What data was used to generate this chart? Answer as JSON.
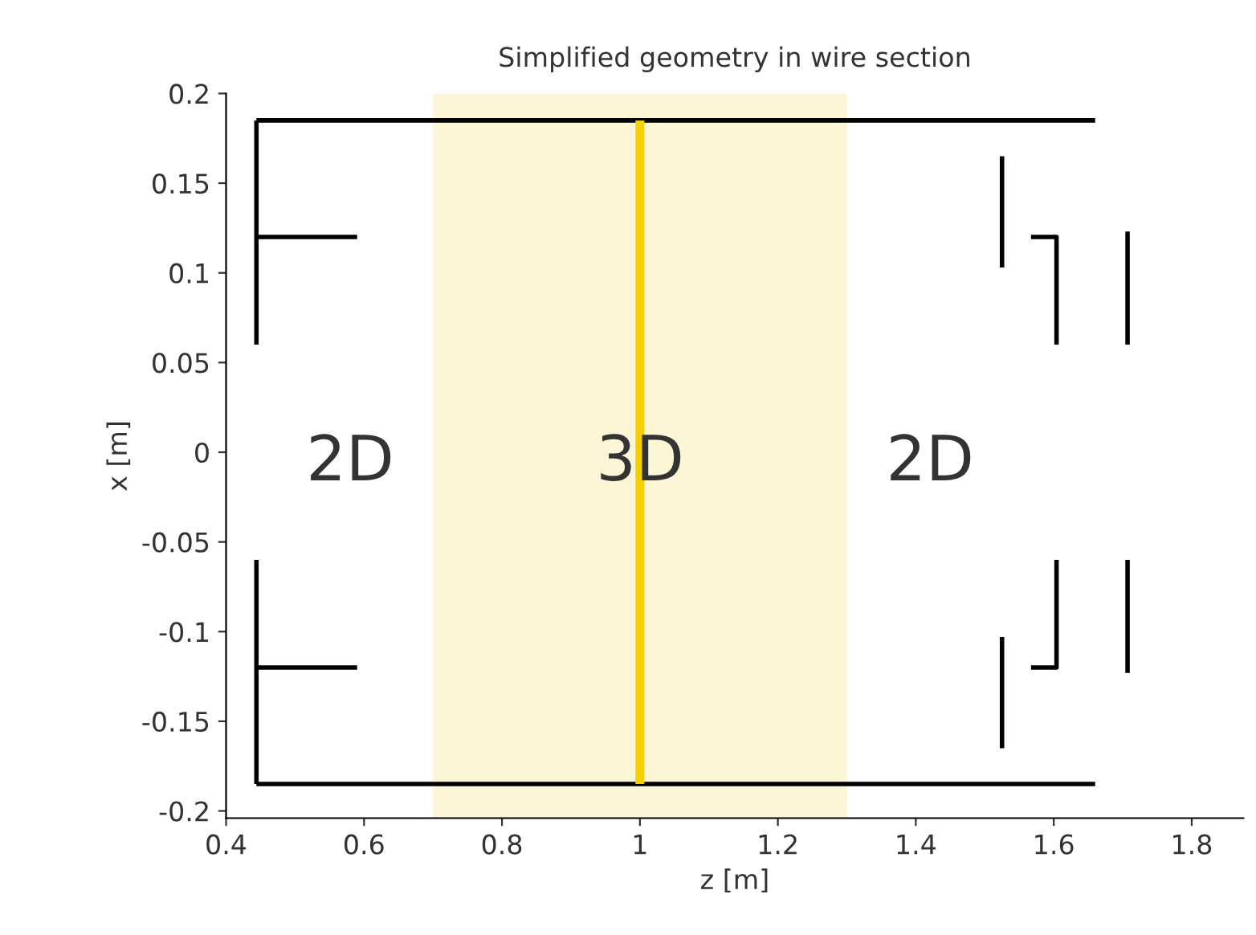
{
  "chart_data": {
    "type": "line",
    "title": "Simplified geometry in wire section",
    "xlabel": "z [m]",
    "ylabel": "x [m]",
    "xlim": [
      0.4,
      1.875
    ],
    "ylim": [
      -0.204,
      0.2
    ],
    "xticks": [
      0.4,
      0.6,
      0.8,
      1,
      1.2,
      1.4,
      1.6,
      1.8
    ],
    "yticks": [
      -0.2,
      -0.15,
      -0.1,
      -0.05,
      0,
      0.05,
      0.1,
      0.15,
      0.2
    ],
    "grid": false,
    "marker": "none",
    "line_style": "solid",
    "bands": [
      {
        "axis": "x",
        "from": 0.7,
        "to": 1.3,
        "color": "#fdf6d6"
      }
    ],
    "annotations": [
      "2D",
      "3D",
      "2D"
    ],
    "series": [
      {
        "color": "#000000",
        "x": [
          0.444,
          1.66
        ],
        "values": [
          0.185,
          0.185
        ]
      },
      {
        "color": "#000000",
        "x": [
          0.444,
          1.66
        ],
        "values": [
          -0.185,
          -0.185
        ]
      },
      {
        "color": "#000000",
        "x": [
          0.444,
          0.444
        ],
        "values": [
          0.185,
          0.06
        ]
      },
      {
        "color": "#000000",
        "x": [
          0.444,
          0.444
        ],
        "values": [
          -0.06,
          -0.185
        ]
      },
      {
        "color": "#000000",
        "x": [
          0.444,
          0.59
        ],
        "values": [
          0.12,
          0.12
        ]
      },
      {
        "color": "#000000",
        "x": [
          0.444,
          0.59
        ],
        "values": [
          -0.12,
          -0.12
        ]
      },
      {
        "color": "#000000",
        "x": [
          1.525,
          1.525
        ],
        "values": [
          0.165,
          0.103
        ]
      },
      {
        "color": "#000000",
        "x": [
          1.525,
          1.525
        ],
        "values": [
          -0.103,
          -0.165
        ]
      },
      {
        "color": "#000000",
        "x": [
          1.567,
          1.604,
          1.604
        ],
        "values": [
          0.12,
          0.12,
          0.06
        ]
      },
      {
        "color": "#000000",
        "x": [
          1.567,
          1.604,
          1.604
        ],
        "values": [
          -0.12,
          -0.12,
          -0.06
        ]
      },
      {
        "color": "#000000",
        "x": [
          1.707,
          1.707
        ],
        "values": [
          0.123,
          0.06
        ]
      },
      {
        "color": "#000000",
        "x": [
          1.707,
          1.707
        ],
        "values": [
          -0.06,
          -0.123
        ]
      },
      {
        "color": "#f5d000",
        "x": [
          1.0,
          1.0
        ],
        "values": [
          0.185,
          -0.185
        ]
      }
    ]
  }
}
